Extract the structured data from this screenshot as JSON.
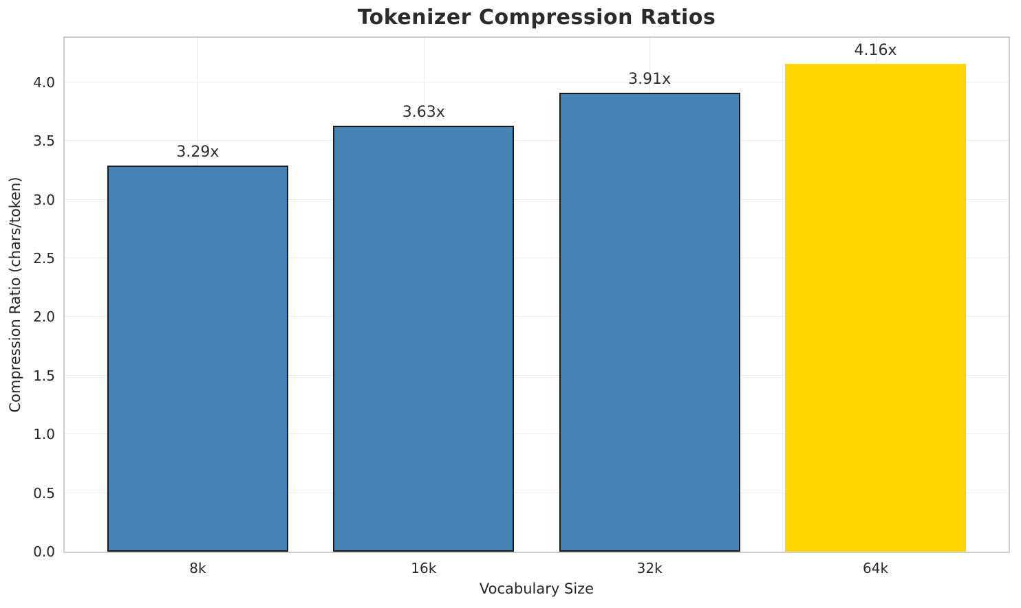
{
  "figure": {
    "title": "Tokenizer Compression Ratios"
  },
  "chart_data": {
    "type": "bar",
    "title": "Tokenizer Compression Ratios",
    "xlabel": "Vocabulary Size",
    "ylabel": "Compression Ratio (chars/token)",
    "categories": [
      "8k",
      "16k",
      "32k",
      "64k"
    ],
    "values": [
      3.29,
      3.63,
      3.91,
      4.16
    ],
    "bar_labels": [
      "3.29x",
      "3.63x",
      "3.91x",
      "4.16x"
    ],
    "bar_colors": [
      "#4682B4",
      "#4682B4",
      "#4682B4",
      "#FFD700"
    ],
    "bar_edge_colors": [
      "#1a1a1a",
      "#1a1a1a",
      "#1a1a1a",
      "none"
    ],
    "base_color": "#4682B4",
    "highlight_color": "#FFD700",
    "ylim": [
      0,
      4.38
    ],
    "yticks": [
      0.0,
      0.5,
      1.0,
      1.5,
      2.0,
      2.5,
      3.0,
      3.5,
      4.0
    ],
    "ytick_labels": [
      "0.0",
      "0.5",
      "1.0",
      "1.5",
      "2.0",
      "2.5",
      "3.0",
      "3.5",
      "4.0"
    ],
    "grid": true,
    "grid_color": "#ebebeb",
    "spine_color": "#cccccc",
    "legend": "none"
  }
}
